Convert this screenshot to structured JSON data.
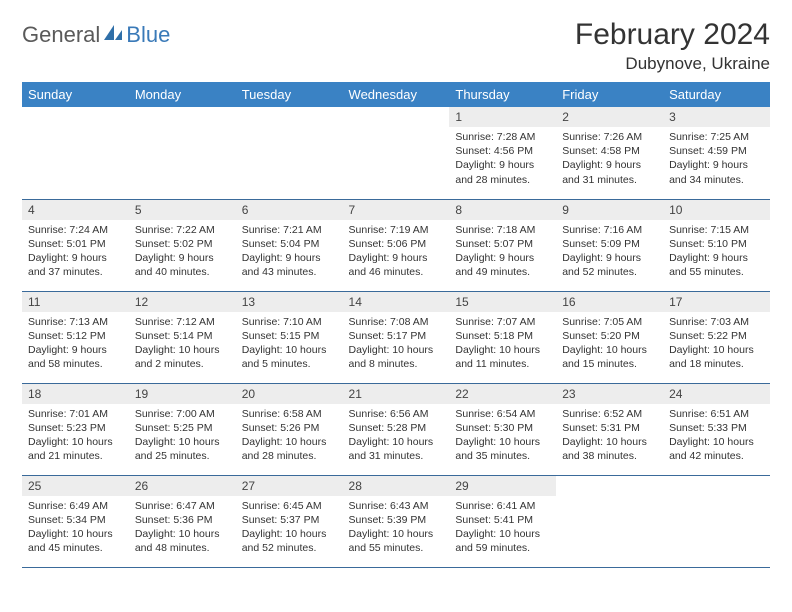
{
  "brand": {
    "part1": "General",
    "part2": "Blue"
  },
  "title": "February 2024",
  "location": "Dubynove, Ukraine",
  "colors": {
    "header_bg": "#3a82c4",
    "header_text": "#ffffff",
    "daynum_bg": "#ededed",
    "row_border": "#3a6a9a",
    "brand_blue": "#3a7ab8",
    "brand_gray": "#5a5a5a"
  },
  "weekdays": [
    "Sunday",
    "Monday",
    "Tuesday",
    "Wednesday",
    "Thursday",
    "Friday",
    "Saturday"
  ],
  "weeks": [
    [
      null,
      null,
      null,
      null,
      {
        "n": "1",
        "sr": "Sunrise: 7:28 AM",
        "ss": "Sunset: 4:56 PM",
        "dl": "Daylight: 9 hours and 28 minutes."
      },
      {
        "n": "2",
        "sr": "Sunrise: 7:26 AM",
        "ss": "Sunset: 4:58 PM",
        "dl": "Daylight: 9 hours and 31 minutes."
      },
      {
        "n": "3",
        "sr": "Sunrise: 7:25 AM",
        "ss": "Sunset: 4:59 PM",
        "dl": "Daylight: 9 hours and 34 minutes."
      }
    ],
    [
      {
        "n": "4",
        "sr": "Sunrise: 7:24 AM",
        "ss": "Sunset: 5:01 PM",
        "dl": "Daylight: 9 hours and 37 minutes."
      },
      {
        "n": "5",
        "sr": "Sunrise: 7:22 AM",
        "ss": "Sunset: 5:02 PM",
        "dl": "Daylight: 9 hours and 40 minutes."
      },
      {
        "n": "6",
        "sr": "Sunrise: 7:21 AM",
        "ss": "Sunset: 5:04 PM",
        "dl": "Daylight: 9 hours and 43 minutes."
      },
      {
        "n": "7",
        "sr": "Sunrise: 7:19 AM",
        "ss": "Sunset: 5:06 PM",
        "dl": "Daylight: 9 hours and 46 minutes."
      },
      {
        "n": "8",
        "sr": "Sunrise: 7:18 AM",
        "ss": "Sunset: 5:07 PM",
        "dl": "Daylight: 9 hours and 49 minutes."
      },
      {
        "n": "9",
        "sr": "Sunrise: 7:16 AM",
        "ss": "Sunset: 5:09 PM",
        "dl": "Daylight: 9 hours and 52 minutes."
      },
      {
        "n": "10",
        "sr": "Sunrise: 7:15 AM",
        "ss": "Sunset: 5:10 PM",
        "dl": "Daylight: 9 hours and 55 minutes."
      }
    ],
    [
      {
        "n": "11",
        "sr": "Sunrise: 7:13 AM",
        "ss": "Sunset: 5:12 PM",
        "dl": "Daylight: 9 hours and 58 minutes."
      },
      {
        "n": "12",
        "sr": "Sunrise: 7:12 AM",
        "ss": "Sunset: 5:14 PM",
        "dl": "Daylight: 10 hours and 2 minutes."
      },
      {
        "n": "13",
        "sr": "Sunrise: 7:10 AM",
        "ss": "Sunset: 5:15 PM",
        "dl": "Daylight: 10 hours and 5 minutes."
      },
      {
        "n": "14",
        "sr": "Sunrise: 7:08 AM",
        "ss": "Sunset: 5:17 PM",
        "dl": "Daylight: 10 hours and 8 minutes."
      },
      {
        "n": "15",
        "sr": "Sunrise: 7:07 AM",
        "ss": "Sunset: 5:18 PM",
        "dl": "Daylight: 10 hours and 11 minutes."
      },
      {
        "n": "16",
        "sr": "Sunrise: 7:05 AM",
        "ss": "Sunset: 5:20 PM",
        "dl": "Daylight: 10 hours and 15 minutes."
      },
      {
        "n": "17",
        "sr": "Sunrise: 7:03 AM",
        "ss": "Sunset: 5:22 PM",
        "dl": "Daylight: 10 hours and 18 minutes."
      }
    ],
    [
      {
        "n": "18",
        "sr": "Sunrise: 7:01 AM",
        "ss": "Sunset: 5:23 PM",
        "dl": "Daylight: 10 hours and 21 minutes."
      },
      {
        "n": "19",
        "sr": "Sunrise: 7:00 AM",
        "ss": "Sunset: 5:25 PM",
        "dl": "Daylight: 10 hours and 25 minutes."
      },
      {
        "n": "20",
        "sr": "Sunrise: 6:58 AM",
        "ss": "Sunset: 5:26 PM",
        "dl": "Daylight: 10 hours and 28 minutes."
      },
      {
        "n": "21",
        "sr": "Sunrise: 6:56 AM",
        "ss": "Sunset: 5:28 PM",
        "dl": "Daylight: 10 hours and 31 minutes."
      },
      {
        "n": "22",
        "sr": "Sunrise: 6:54 AM",
        "ss": "Sunset: 5:30 PM",
        "dl": "Daylight: 10 hours and 35 minutes."
      },
      {
        "n": "23",
        "sr": "Sunrise: 6:52 AM",
        "ss": "Sunset: 5:31 PM",
        "dl": "Daylight: 10 hours and 38 minutes."
      },
      {
        "n": "24",
        "sr": "Sunrise: 6:51 AM",
        "ss": "Sunset: 5:33 PM",
        "dl": "Daylight: 10 hours and 42 minutes."
      }
    ],
    [
      {
        "n": "25",
        "sr": "Sunrise: 6:49 AM",
        "ss": "Sunset: 5:34 PM",
        "dl": "Daylight: 10 hours and 45 minutes."
      },
      {
        "n": "26",
        "sr": "Sunrise: 6:47 AM",
        "ss": "Sunset: 5:36 PM",
        "dl": "Daylight: 10 hours and 48 minutes."
      },
      {
        "n": "27",
        "sr": "Sunrise: 6:45 AM",
        "ss": "Sunset: 5:37 PM",
        "dl": "Daylight: 10 hours and 52 minutes."
      },
      {
        "n": "28",
        "sr": "Sunrise: 6:43 AM",
        "ss": "Sunset: 5:39 PM",
        "dl": "Daylight: 10 hours and 55 minutes."
      },
      {
        "n": "29",
        "sr": "Sunrise: 6:41 AM",
        "ss": "Sunset: 5:41 PM",
        "dl": "Daylight: 10 hours and 59 minutes."
      },
      null,
      null
    ]
  ]
}
